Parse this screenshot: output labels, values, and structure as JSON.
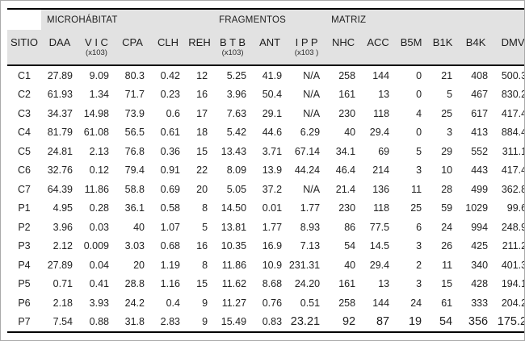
{
  "colors": {
    "header_bg": "#e2e2e2",
    "rule": "#000000",
    "frame_border": "#a9a9a9",
    "text": "#1d1d1d"
  },
  "table": {
    "groups": [
      {
        "label": "",
        "span": 1,
        "blank": true
      },
      {
        "label": "MICROHÁBITAT",
        "span": 5,
        "blank": false
      },
      {
        "label": "FRAGMENTOS",
        "span": 3,
        "blank": false
      },
      {
        "label": "MATRIZ",
        "span": 6,
        "blank": false
      }
    ],
    "columns": [
      {
        "label": "SITIO",
        "sub": ""
      },
      {
        "label": "DAA",
        "sub": ""
      },
      {
        "label": "V I C",
        "sub": "(x103)"
      },
      {
        "label": "CPA",
        "sub": ""
      },
      {
        "label": "CLH",
        "sub": ""
      },
      {
        "label": "REH",
        "sub": ""
      },
      {
        "label": "B T B",
        "sub": "(x103)"
      },
      {
        "label": "ANT",
        "sub": ""
      },
      {
        "label": "I P P",
        "sub": "(x103 )"
      },
      {
        "label": "NHC",
        "sub": ""
      },
      {
        "label": "ACC",
        "sub": ""
      },
      {
        "label": "B5M",
        "sub": ""
      },
      {
        "label": "B1K",
        "sub": ""
      },
      {
        "label": "B4K",
        "sub": ""
      },
      {
        "label": "DMV",
        "sub": ""
      }
    ],
    "rows": [
      [
        "C1",
        "27.89",
        "9.09",
        "80.3",
        "0.42",
        "12",
        "5.25",
        "41.9",
        "N/A",
        "258",
        "144",
        "0",
        "21",
        "408",
        "500.3"
      ],
      [
        "C2",
        "61.93",
        "1.34",
        "71.7",
        "0.23",
        "16",
        "3.96",
        "50.4",
        "N/A",
        "161",
        "13",
        "0",
        "5",
        "467",
        "830.2"
      ],
      [
        "C3",
        "34.37",
        "14.98",
        "73.9",
        "0.6",
        "17",
        "7.63",
        "29.1",
        "N/A",
        "230",
        "118",
        "4",
        "25",
        "617",
        "417.4"
      ],
      [
        "C4",
        "81.79",
        "61.08",
        "56.5",
        "0.61",
        "18",
        "5.42",
        "44.6",
        "6.29",
        "40",
        "29.4",
        "0",
        "3",
        "413",
        "884.4"
      ],
      [
        "C5",
        "24.81",
        "2.13",
        "76.8",
        "0.36",
        "15",
        "13.43",
        "3.71",
        "67.14",
        "34.1",
        "69",
        "5",
        "29",
        "552",
        "311.1"
      ],
      [
        "C6",
        "32.76",
        "0.12",
        "79.4",
        "0.91",
        "22",
        "8.09",
        "13.9",
        "44.24",
        "46.4",
        "214",
        "3",
        "10",
        "443",
        "417.4"
      ],
      [
        "C7",
        "64.39",
        "11.86",
        "58.8",
        "0.69",
        "20",
        "5.05",
        "37.2",
        "N/A",
        "21.4",
        "136",
        "11",
        "28",
        "499",
        "362.8"
      ],
      [
        "P1",
        "4.95",
        "0.28",
        "36.1",
        "0.58",
        "8",
        "14.50",
        "0.01",
        "1.77",
        "230",
        "118",
        "25",
        "59",
        "1029",
        "99.6"
      ],
      [
        "P2",
        "3.96",
        "0.03",
        "40",
        "1.07",
        "5",
        "13.81",
        "1.77",
        "8.93",
        "86",
        "77.5",
        "6",
        "24",
        "994",
        "248.9"
      ],
      [
        "P3",
        "2.12",
        "0.009",
        "3.03",
        "0.68",
        "16",
        "10.35",
        "16.9",
        "7.13",
        "54",
        "14.5",
        "3",
        "26",
        "425",
        "211.2"
      ],
      [
        "P4",
        "27.89",
        "0.04",
        "20",
        "1.19",
        "8",
        "11.86",
        "10.9",
        "231.31",
        "40",
        "29.4",
        "2",
        "11",
        "340",
        "401.3"
      ],
      [
        "P5",
        "0.71",
        "0.41",
        "28.8",
        "1.16",
        "15",
        "11.62",
        "8.68",
        "24.20",
        "161",
        "13",
        "3",
        "15",
        "428",
        "194.1"
      ],
      [
        "P6",
        "2.18",
        "3.93",
        "24.2",
        "0.4",
        "9",
        "11.27",
        "0.76",
        "0.51",
        "258",
        "144",
        "24",
        "61",
        "333",
        "204.2"
      ],
      [
        "P7",
        "7.54",
        "0.88",
        "31.8",
        "2.83",
        "9",
        "15.49",
        "0.83",
        "23.21",
        "92",
        "87",
        "19",
        "54",
        "356",
        "175.2"
      ]
    ],
    "emphasis": {
      "row_label": "P7",
      "from_column_index": 8
    }
  }
}
